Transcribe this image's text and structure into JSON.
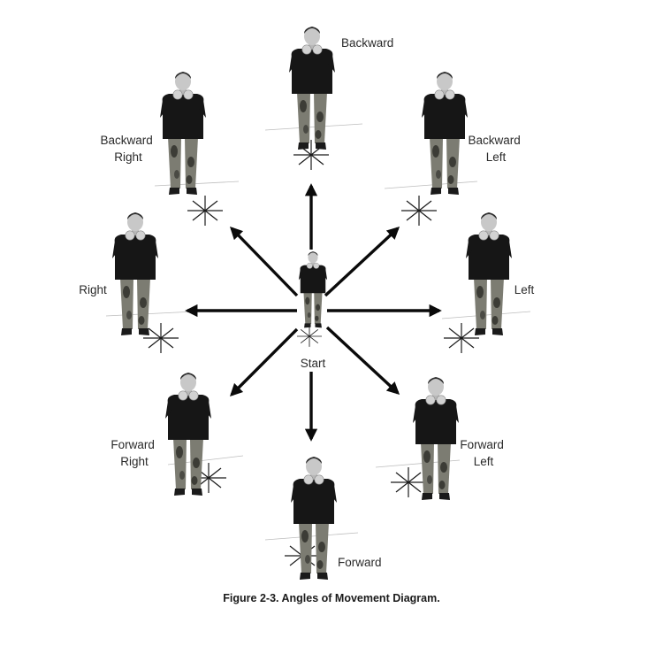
{
  "labels": {
    "start": "Start",
    "backward": "Backward",
    "backward_right": [
      "Backward",
      "Right"
    ],
    "backward_left": [
      "Backward",
      "Left"
    ],
    "right": "Right",
    "left": "Left",
    "forward_right": [
      "Forward",
      "Right"
    ],
    "forward_left": [
      "Forward",
      "Left"
    ],
    "forward": "Forward"
  },
  "caption": "Figure 2-3. Angles of Movement Diagram.",
  "colors": {
    "arrow": "#0a0a0a",
    "uniform_shirt": "#161616",
    "camo_base": "#7c7c72",
    "camo_dark": "#3c3c36",
    "skin": "#c8c8c8"
  },
  "icons": [
    "soldier-figure",
    "foot-position-star",
    "direction-arrow"
  ]
}
